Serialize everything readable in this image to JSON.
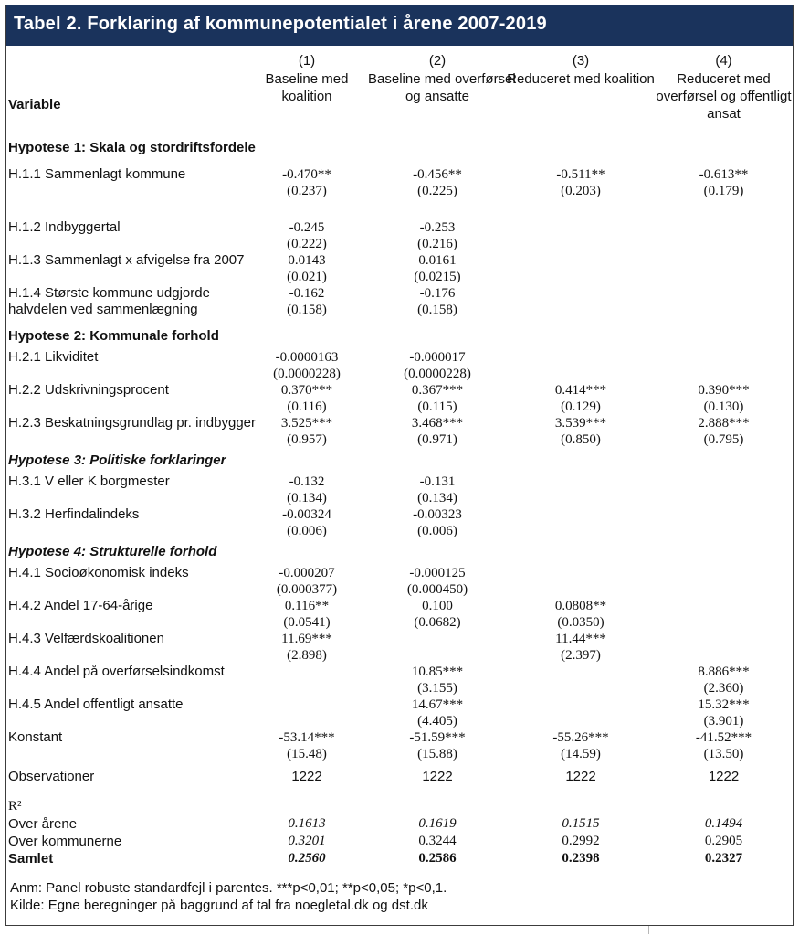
{
  "colors": {
    "header_bg": "#1a335c",
    "border": "#3c3c3c",
    "text": "#111111"
  },
  "title": "Tabel 2. Forklaring af kommunepotentialet i årene 2007-2019",
  "columns": {
    "variable_header": "Variable",
    "cols": [
      {
        "num": "(1)",
        "desc": "Baseline med\nkoalition"
      },
      {
        "num": "(2)",
        "desc": "Baseline med overførsel\nog ansatte"
      },
      {
        "num": "(3)",
        "desc": "Reduceret med koalition"
      },
      {
        "num": "(4)",
        "desc": "Reduceret med\noverførsel og offentligt\nansat"
      }
    ]
  },
  "rows": [
    {
      "type": "section",
      "label": "Hypotese 1: Skala og stordriftsfordele",
      "italic": false,
      "gap": 6
    },
    {
      "type": "var",
      "label": "H.1.1 Sammenlagt kommune",
      "gap": 10,
      "cells": [
        [
          "-0.470**",
          "(0.237)"
        ],
        [
          "-0.456**",
          "(0.225)"
        ],
        [
          "-0.511**",
          "(0.203)"
        ],
        [
          "-0.613**",
          "(0.179)"
        ]
      ]
    },
    {
      "type": "var",
      "label": "H.1.2 Indbyggertal",
      "gap": 22,
      "cells": [
        [
          "-0.245",
          "(0.222)"
        ],
        [
          "-0.253",
          "(0.216)"
        ],
        null,
        null
      ]
    },
    {
      "type": "var",
      "label": "H.1.3 Sammenlagt x afvigelse fra 2007",
      "gap": 0,
      "cells": [
        [
          "0.0143",
          "(0.021)"
        ],
        [
          "0.0161",
          "(0.0215)"
        ],
        null,
        null
      ]
    },
    {
      "type": "var",
      "label": "H.1.4 Største kommune udgjorde\nhalvdelen ved sammenlægning",
      "gap": 0,
      "cells": [
        [
          "-0.162",
          "(0.158)"
        ],
        [
          "-0.176",
          "(0.158)"
        ],
        null,
        null
      ]
    },
    {
      "type": "section",
      "label": "Hypotese 2: Kommunale forhold",
      "italic": false,
      "gap": 10
    },
    {
      "type": "var",
      "label": "H.2.1 Likviditet",
      "gap": 4,
      "cells": [
        [
          "-0.0000163",
          "(0.0000228)"
        ],
        [
          "-0.000017",
          "(0.0000228)"
        ],
        null,
        null
      ]
    },
    {
      "type": "var",
      "label": "H.2.2 Udskrivningsprocent",
      "gap": 0,
      "cells": [
        [
          "0.370***",
          "(0.116)"
        ],
        [
          "0.367***",
          "(0.115)"
        ],
        [
          "0.414***",
          "(0.129)"
        ],
        [
          "0.390***",
          "(0.130)"
        ]
      ]
    },
    {
      "type": "var",
      "label": "H.2.3 Beskatningsgrundlag pr. indbygger",
      "gap": 0,
      "cells": [
        [
          "3.525***",
          "(0.957)"
        ],
        [
          "3.468***",
          "(0.971)"
        ],
        [
          "3.539***",
          "(0.850)"
        ],
        [
          "2.888***",
          "(0.795)"
        ]
      ]
    },
    {
      "type": "section",
      "label": "Hypotese 3: Politiske forklaringer",
      "italic": true,
      "gap": 4
    },
    {
      "type": "var",
      "label": "H.3.1 V eller K borgmester",
      "gap": 4,
      "cells": [
        [
          "-0.132",
          "(0.134)"
        ],
        [
          "-0.131",
          "(0.134)"
        ],
        null,
        null
      ]
    },
    {
      "type": "var",
      "label": "H.3.2 Herfindalindeks",
      "gap": 0,
      "cells": [
        [
          "-0.00324",
          "(0.006)"
        ],
        [
          "-0.00323",
          "(0.006)"
        ],
        null,
        null
      ]
    },
    {
      "type": "section",
      "label": "Hypotese 4: Strukturelle forhold",
      "italic": true,
      "gap": 4
    },
    {
      "type": "var",
      "label": "H.4.1 Socioøkonomisk indeks",
      "gap": 4,
      "cells": [
        [
          "-0.000207",
          "(0.000377)"
        ],
        [
          "-0.000125",
          "(0.000450)"
        ],
        null,
        null
      ]
    },
    {
      "type": "var",
      "label": "H.4.2 Andel 17-64-årige",
      "gap": 0,
      "cells": [
        [
          "0.116**",
          "(0.0541)"
        ],
        [
          "0.100",
          "(0.0682)"
        ],
        [
          "0.0808**",
          "(0.0350)"
        ],
        null
      ]
    },
    {
      "type": "var",
      "label": "H.4.3 Velfærdskoalitionen",
      "gap": 0,
      "cells": [
        [
          "11.69***",
          "(2.898)"
        ],
        null,
        [
          "11.44***",
          "(2.397)"
        ],
        null
      ]
    },
    {
      "type": "var",
      "label": "H.4.4 Andel på overførselsindkomst",
      "gap": 0,
      "cells": [
        null,
        [
          "10.85***",
          "(3.155)"
        ],
        null,
        [
          "8.886***",
          "(2.360)"
        ]
      ]
    },
    {
      "type": "var",
      "label": "H.4.5 Andel offentligt ansatte",
      "gap": 0,
      "cells": [
        null,
        [
          "14.67***",
          "(4.405)"
        ],
        null,
        [
          "15.32***",
          "(3.901)"
        ]
      ]
    },
    {
      "type": "var",
      "label": "Konstant",
      "gap": 0,
      "cells": [
        [
          "-53.14***",
          "(15.48)"
        ],
        [
          "-51.59***",
          "(15.88)"
        ],
        [
          "-55.26***",
          "(14.59)"
        ],
        [
          "-41.52***",
          "(13.50)"
        ]
      ]
    },
    {
      "type": "single",
      "label": "Observationer",
      "gap": 6,
      "values": [
        "1222",
        "1222",
        "1222",
        "1222"
      ],
      "styles": [
        "sans",
        "sans",
        "sans",
        "sans"
      ]
    },
    {
      "type": "single",
      "label": "R²",
      "labelClass": "serif",
      "gap": 14,
      "values": [
        "",
        "",
        "",
        ""
      ],
      "styles": [
        "",
        "",
        "",
        ""
      ]
    },
    {
      "type": "single",
      "label": "Over årene",
      "gap": 0,
      "values": [
        "0.1613",
        "0.1619",
        "0.1515",
        "0.1494"
      ],
      "styles": [
        "i",
        "i",
        "i",
        "i"
      ]
    },
    {
      "type": "single",
      "label": "Over kommunerne",
      "gap": 0,
      "values": [
        "0.3201",
        "0.3244",
        "0.2992",
        "0.2905"
      ],
      "styles": [
        "i",
        "",
        "",
        ""
      ]
    },
    {
      "type": "single",
      "label": "Samlet",
      "labelClass": "b",
      "gap": 0,
      "values": [
        "0.2560",
        "0.2586",
        "0.2398",
        "0.2327"
      ],
      "styles": [
        "bi",
        "b",
        "b",
        "b"
      ]
    }
  ],
  "notes": {
    "anm": "Anm: Panel robuste standardfejl i parentes. ***p<0,01; **p<0,05; *p<0,1.",
    "kilde": "Kilde: Egne beregninger på baggrund af tal fra noegletal.dk og dst.dk"
  }
}
